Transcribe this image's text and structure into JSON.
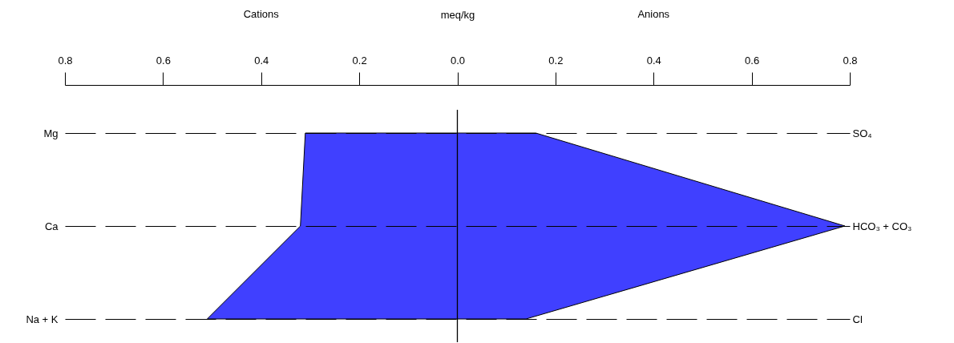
{
  "chart_data": {
    "type": "area",
    "orientation": "horizontal",
    "xlabel": "meq/kg",
    "categories": [
      "Mg",
      "Ca",
      "Na + K"
    ],
    "y2_categories": [
      "SO₄",
      "HCO₃ + CO₃",
      "Cl"
    ],
    "series": [
      {
        "name": "Cations",
        "color": "#4040ff",
        "values": [
          -0.31,
          -0.32,
          -0.51
        ]
      },
      {
        "name": "Anions",
        "color": "#4040ff",
        "values": [
          0.16,
          0.79,
          0.14
        ]
      }
    ],
    "xlim": [
      -0.8,
      0.8
    ],
    "xticks": [
      {
        "value": -0.8,
        "label": "0.8"
      },
      {
        "value": -0.6,
        "label": "0.6"
      },
      {
        "value": -0.4,
        "label": "0.4"
      },
      {
        "value": -0.2,
        "label": "0.2"
      },
      {
        "value": 0,
        "label": "0.0"
      },
      0.2,
      0.4,
      0.6,
      0.8
    ],
    "grid": "y",
    "ref_lines": [
      {
        "axis": "x",
        "value": 0
      }
    ]
  }
}
